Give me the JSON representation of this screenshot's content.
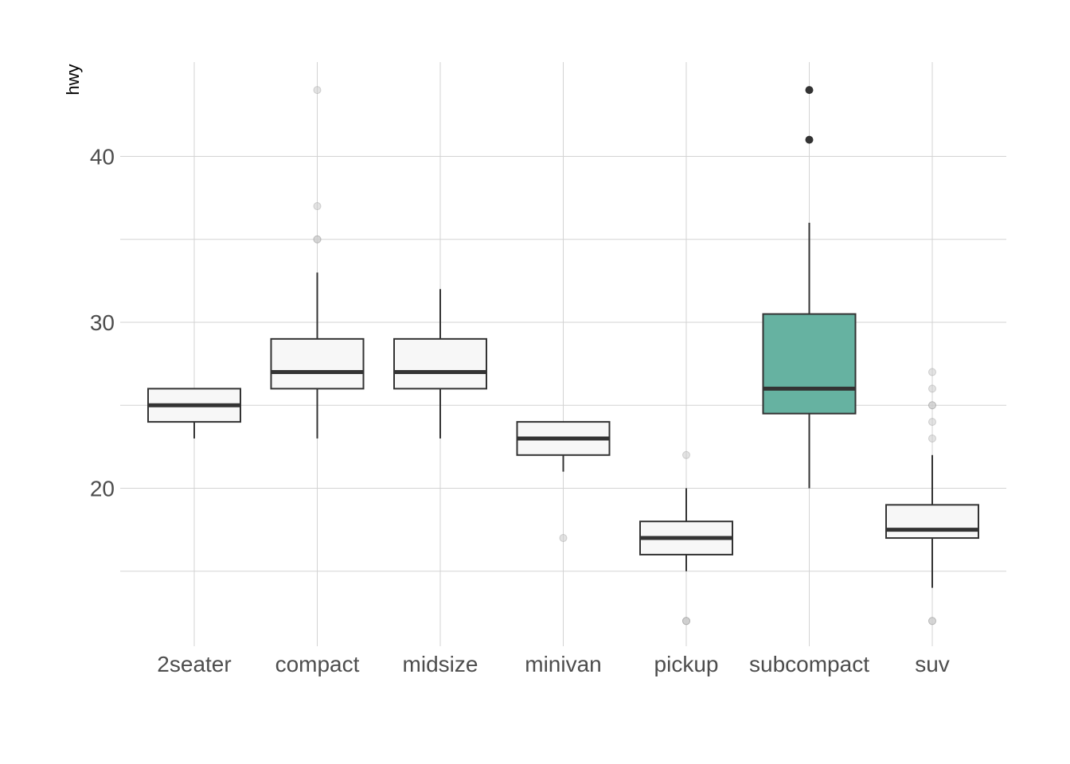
{
  "chart_data": {
    "type": "boxplot",
    "title": "",
    "xlabel": "",
    "ylabel": "hwy",
    "ylim": [
      11,
      45
    ],
    "yticks": [
      20,
      30,
      40
    ],
    "y_minor_gridlines": [
      15,
      25,
      35
    ],
    "grid": true,
    "legend": "none",
    "highlight_category": "subcompact",
    "colors": {
      "box_fill": "#f7f7f7",
      "highlight_fill": "#66b2a1",
      "line": "#333333",
      "grid": "#d3d3d3",
      "outlier_faded": "#cccccc",
      "outlier_highlight": "#333333"
    },
    "categories": [
      "2seater",
      "compact",
      "midsize",
      "minivan",
      "pickup",
      "subcompact",
      "suv"
    ],
    "boxes": [
      {
        "category": "2seater",
        "lower_whisker": 23,
        "q1": 24,
        "median": 25,
        "q3": 26,
        "upper_whisker": 26,
        "outliers": []
      },
      {
        "category": "compact",
        "lower_whisker": 23,
        "q1": 26,
        "median": 27,
        "q3": 29,
        "upper_whisker": 33,
        "outliers": [
          35,
          37,
          35,
          44
        ]
      },
      {
        "category": "midsize",
        "lower_whisker": 23,
        "q1": 26,
        "median": 27,
        "q3": 29,
        "upper_whisker": 32,
        "outliers": []
      },
      {
        "category": "minivan",
        "lower_whisker": 21,
        "q1": 22,
        "median": 23,
        "q3": 24,
        "upper_whisker": 24,
        "outliers": [
          17
        ]
      },
      {
        "category": "pickup",
        "lower_whisker": 15,
        "q1": 16,
        "median": 17,
        "q3": 18,
        "upper_whisker": 20,
        "outliers": [
          12,
          12,
          12,
          22
        ]
      },
      {
        "category": "subcompact",
        "lower_whisker": 20,
        "q1": 24.5,
        "median": 26,
        "q3": 30.5,
        "upper_whisker": 36,
        "outliers": [
          44,
          41
        ]
      },
      {
        "category": "suv",
        "lower_whisker": 14,
        "q1": 17,
        "median": 17.5,
        "q3": 19,
        "upper_whisker": 22,
        "outliers": [
          12,
          12,
          25,
          24,
          27,
          25,
          26,
          23
        ]
      }
    ]
  }
}
